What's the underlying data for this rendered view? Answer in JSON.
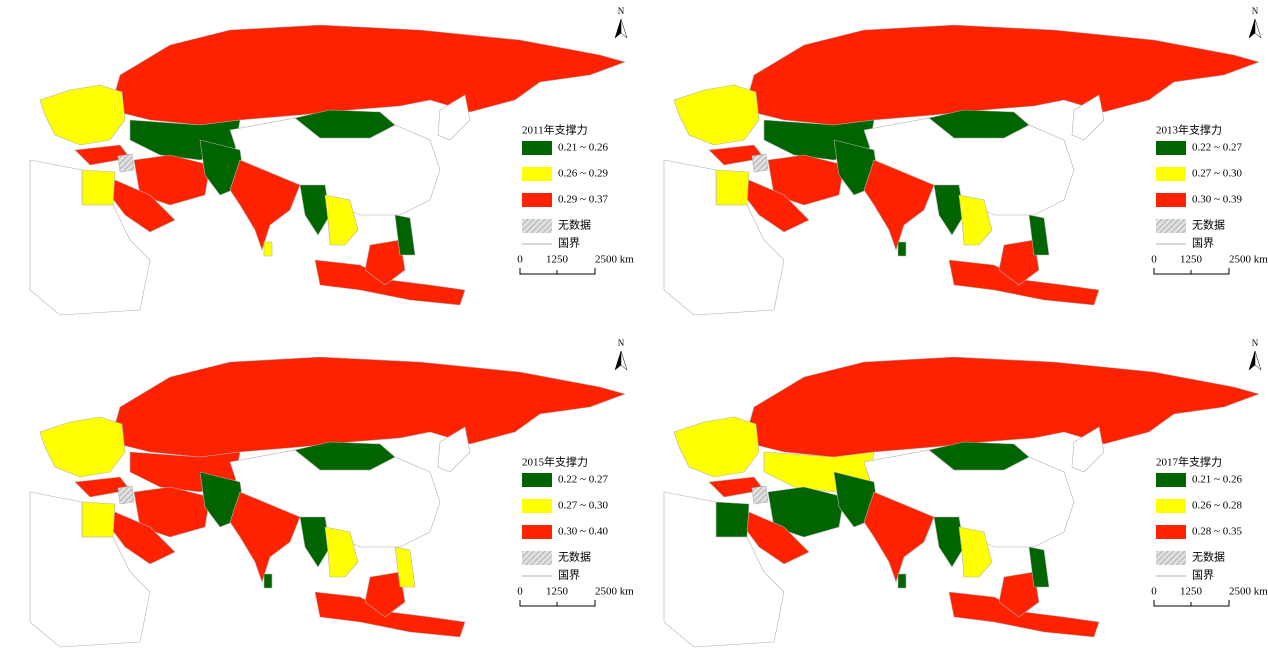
{
  "panels": [
    {
      "legend_title": "2011年支撑力",
      "north": "N",
      "scale": [
        "0",
        "1250",
        "2500 km"
      ],
      "legend": [
        {
          "label": "0.21 ~ 0.26",
          "color": "#006400"
        },
        {
          "label": "0.26 ~ 0.29",
          "color": "#ffff00"
        },
        {
          "label": "0.29 ~ 0.37",
          "color": "#ff2200"
        },
        {
          "label": "无数据",
          "color": "#c8c8c8"
        },
        {
          "label": "国界",
          "color": "#b0b0b0"
        }
      ]
    },
    {
      "legend_title": "2013年支撑力",
      "north": "N",
      "scale": [
        "0",
        "1250",
        "2500 km"
      ],
      "legend": [
        {
          "label": "0.22 ~ 0.27",
          "color": "#006400"
        },
        {
          "label": "0.27 ~ 0.30",
          "color": "#ffff00"
        },
        {
          "label": "0.30 ~ 0.39",
          "color": "#ff2200"
        },
        {
          "label": "无数据",
          "color": "#c8c8c8"
        },
        {
          "label": "国界",
          "color": "#b0b0b0"
        }
      ]
    },
    {
      "legend_title": "2015年支撑力",
      "north": "N",
      "scale": [
        "0",
        "1250",
        "2500 km"
      ],
      "legend": [
        {
          "label": "0.22 ~ 0.27",
          "color": "#006400"
        },
        {
          "label": "0.27 ~ 0.30",
          "color": "#ffff00"
        },
        {
          "label": "0.30 ~ 0.40",
          "color": "#ff2200"
        },
        {
          "label": "无数据",
          "color": "#c8c8c8"
        },
        {
          "label": "国界",
          "color": "#b0b0b0"
        }
      ]
    },
    {
      "legend_title": "2017年支撑力",
      "north": "N",
      "scale": [
        "0",
        "1250",
        "2500 km"
      ],
      "legend": [
        {
          "label": "0.21 ~ 0.26",
          "color": "#006400"
        },
        {
          "label": "0.26 ~ 0.28",
          "color": "#ffff00"
        },
        {
          "label": "0.28 ~ 0.35",
          "color": "#ff2200"
        },
        {
          "label": "无数据",
          "color": "#c8c8c8"
        },
        {
          "label": "国界",
          "color": "#b0b0b0"
        }
      ]
    }
  ]
}
